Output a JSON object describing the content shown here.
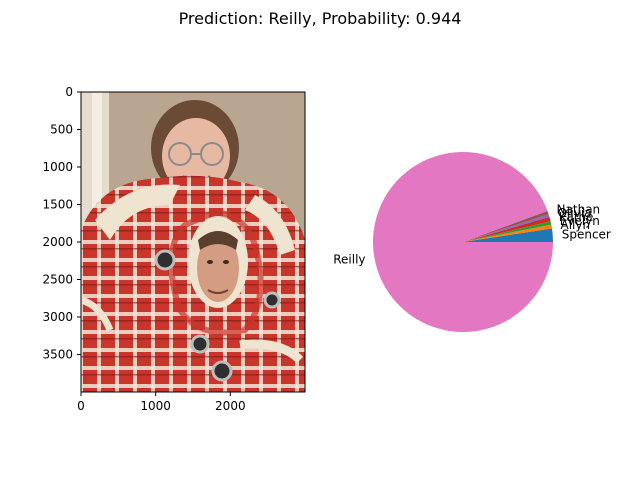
{
  "suptitle": "Prediction: Reilly, Probability: 0.944",
  "image_axes": {
    "xticks": [
      0,
      1000,
      2000
    ],
    "yticks": [
      0,
      500,
      1000,
      1500,
      2000,
      2500,
      3000,
      3500
    ],
    "xlim": [
      0,
      3000
    ],
    "ylim": [
      4000,
      0
    ]
  },
  "chart_data": {
    "type": "pie",
    "title": "Prediction: Reilly, Probability: 0.944",
    "slices": [
      {
        "label": "Spencer",
        "value": 0.024,
        "color": "#1f77b4"
      },
      {
        "label": "Allyn",
        "value": 0.007,
        "color": "#ff7f0e"
      },
      {
        "label": "Evelyn",
        "value": 0.006,
        "color": "#2ca02c"
      },
      {
        "label": "Kathe",
        "value": 0.008,
        "color": "#d62728"
      },
      {
        "label": "Olivia",
        "value": 0.005,
        "color": "#9467bd"
      },
      {
        "label": "Nathan",
        "value": 0.006,
        "color": "#8c564b"
      },
      {
        "label": "Reilly",
        "value": 0.944,
        "color": "#e377c2"
      }
    ]
  }
}
